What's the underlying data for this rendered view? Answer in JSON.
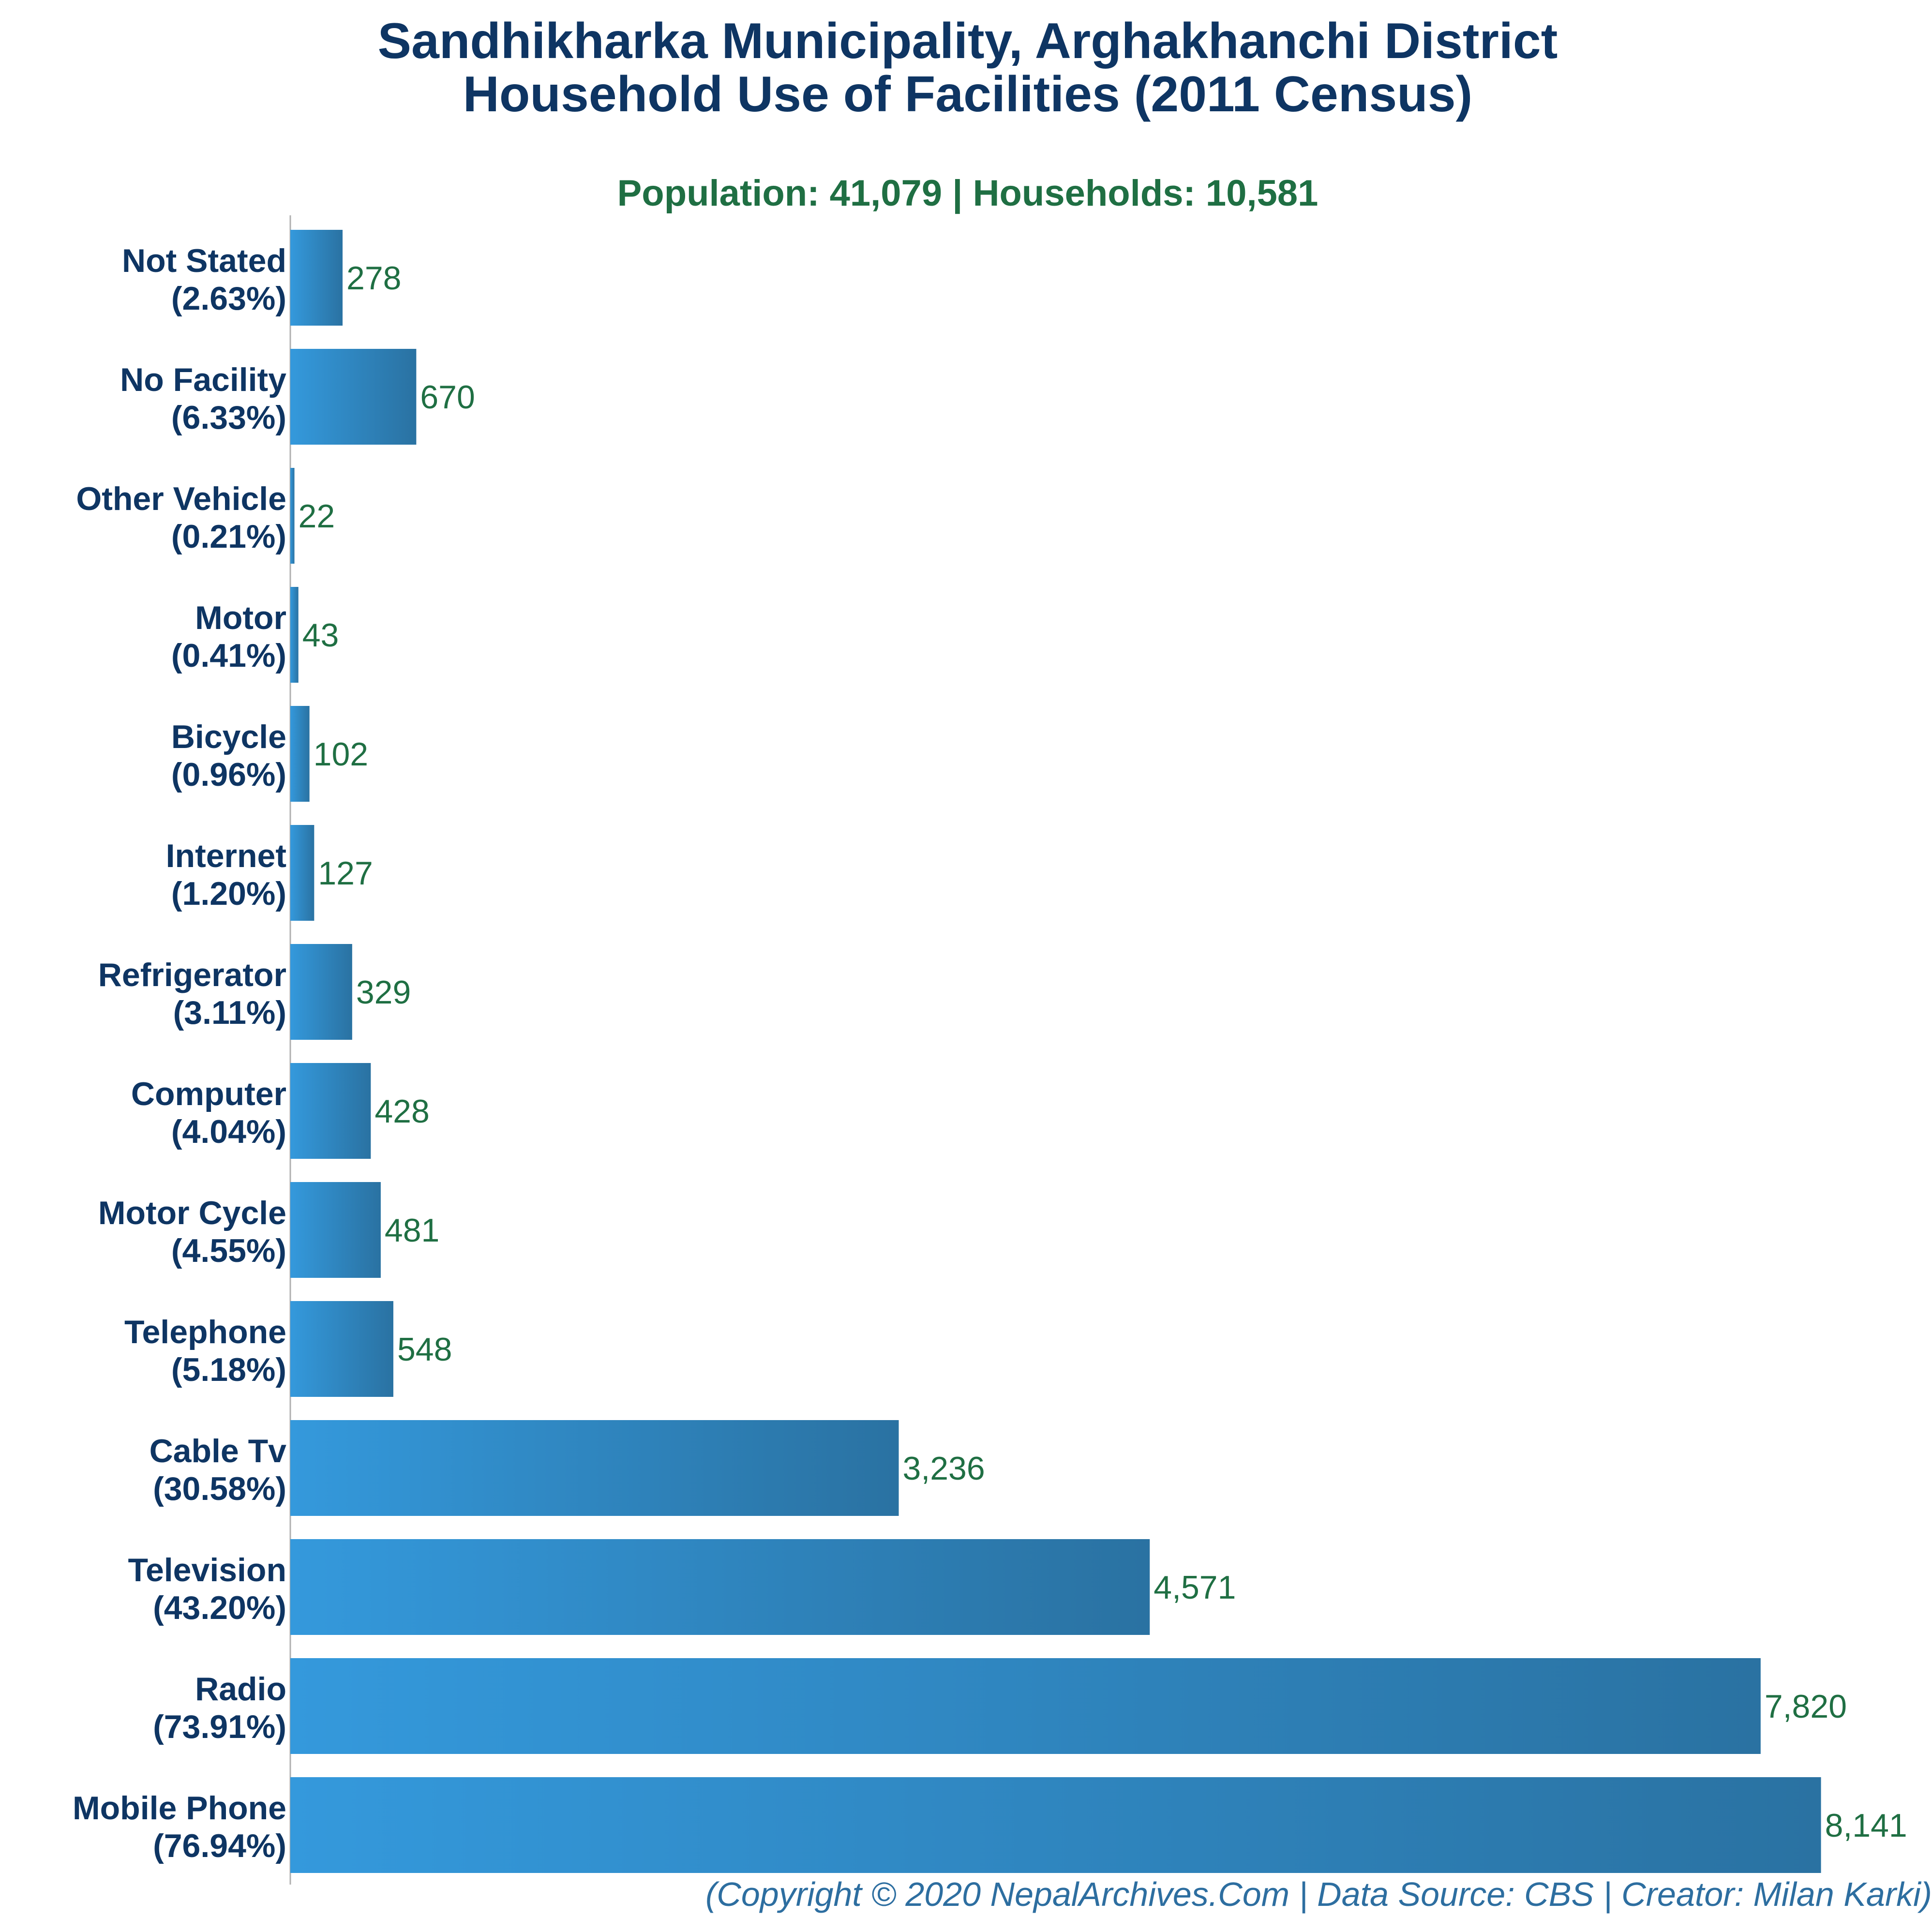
{
  "title_line1": "Sandhikharka Municipality, Arghakhanchi District",
  "title_line2": "Household Use of Facilities (2011 Census)",
  "subtitle": "Population: 41,079 | Households: 10,581",
  "footer": "(Copyright © 2020 NepalArchives.Com | Data Source: CBS | Creator: Milan Karki)",
  "colors": {
    "bar_start": "#3499dc",
    "bar_end": "#2a72a2",
    "category_label": "#0e3563",
    "value_label": "#1f6f43",
    "axis": "#b0b0b0"
  },
  "chart_data": {
    "type": "bar",
    "orientation": "horizontal",
    "categories": [
      "Not Stated",
      "No Facility",
      "Other Vehicle",
      "Motor",
      "Bicycle",
      "Internet",
      "Refrigerator",
      "Computer",
      "Motor Cycle",
      "Telephone",
      "Cable Tv",
      "Television",
      "Radio",
      "Mobile Phone"
    ],
    "percent_labels": [
      "(2.63%)",
      "(6.33%)",
      "(0.21%)",
      "(0.41%)",
      "(0.96%)",
      "(1.20%)",
      "(3.11%)",
      "(4.04%)",
      "(4.55%)",
      "(5.18%)",
      "(30.58%)",
      "(43.20%)",
      "(73.91%)",
      "(76.94%)"
    ],
    "values": [
      278,
      670,
      22,
      43,
      102,
      127,
      329,
      428,
      481,
      548,
      3236,
      4571,
      7820,
      8141
    ],
    "value_labels": [
      "278",
      "670",
      "22",
      "43",
      "102",
      "127",
      "329",
      "428",
      "481",
      "548",
      "3,236",
      "4,571",
      "7,820",
      "8,141"
    ],
    "xlim": [
      0,
      8300
    ],
    "grid": false,
    "title": "Sandhikharka Municipality, Arghakhanchi District Household Use of Facilities (2011 Census)",
    "xlabel": "",
    "ylabel": ""
  }
}
